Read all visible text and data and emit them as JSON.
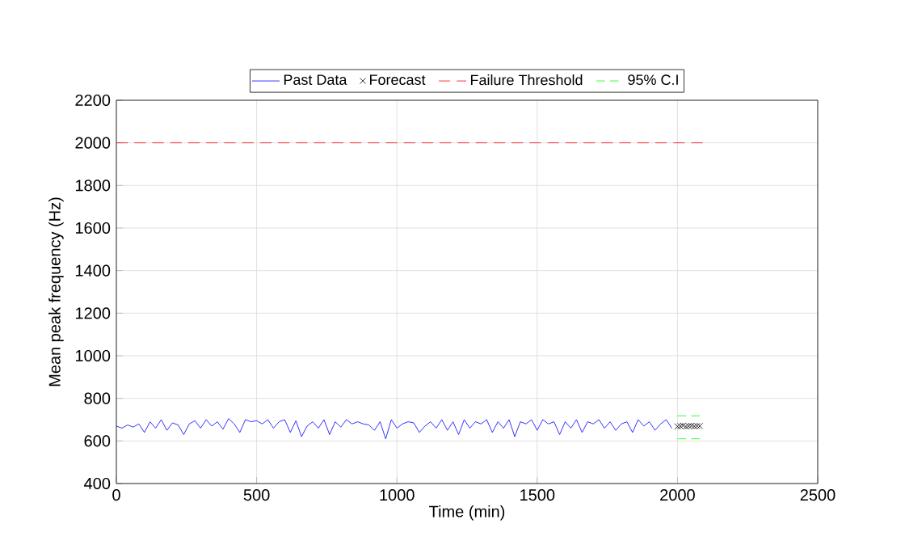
{
  "chart_data": {
    "type": "line",
    "xlabel": "Time (min)",
    "ylabel": "Mean peak frequency (Hz)",
    "xlim": [
      0,
      2500
    ],
    "ylim": [
      400,
      2200
    ],
    "xticks": [
      0,
      500,
      1000,
      1500,
      2000,
      2500
    ],
    "yticks": [
      400,
      600,
      800,
      1000,
      1200,
      1400,
      1600,
      1800,
      2000,
      2200
    ],
    "grid": true,
    "legend": "top",
    "series": [
      {
        "name": "Past Data",
        "color": "#0000ff",
        "marker": "none",
        "line_style": "solid",
        "x": [
          0,
          20,
          40,
          60,
          80,
          100,
          120,
          140,
          160,
          180,
          200,
          220,
          240,
          260,
          280,
          300,
          320,
          340,
          360,
          380,
          400,
          420,
          440,
          460,
          480,
          500,
          520,
          540,
          560,
          580,
          600,
          620,
          640,
          660,
          680,
          700,
          720,
          740,
          760,
          780,
          800,
          820,
          840,
          860,
          880,
          900,
          920,
          940,
          960,
          980,
          1000,
          1020,
          1040,
          1060,
          1080,
          1100,
          1120,
          1140,
          1160,
          1180,
          1200,
          1220,
          1240,
          1260,
          1280,
          1300,
          1320,
          1340,
          1360,
          1380,
          1400,
          1420,
          1440,
          1460,
          1480,
          1500,
          1520,
          1540,
          1560,
          1580,
          1600,
          1620,
          1640,
          1660,
          1680,
          1700,
          1720,
          1740,
          1760,
          1780,
          1800,
          1820,
          1840,
          1860,
          1880,
          1900,
          1920,
          1940,
          1960,
          1980
        ],
        "values": [
          670,
          660,
          675,
          665,
          680,
          640,
          690,
          660,
          700,
          650,
          685,
          675,
          630,
          680,
          695,
          660,
          700,
          670,
          690,
          655,
          705,
          680,
          640,
          700,
          690,
          695,
          680,
          700,
          660,
          690,
          700,
          640,
          695,
          620,
          670,
          690,
          660,
          700,
          630,
          690,
          665,
          700,
          680,
          690,
          680,
          675,
          650,
          690,
          610,
          700,
          660,
          680,
          690,
          685,
          640,
          670,
          690,
          660,
          700,
          650,
          690,
          630,
          700,
          660,
          690,
          680,
          700,
          640,
          690,
          660,
          700,
          620,
          690,
          680,
          700,
          650,
          700,
          680,
          690,
          630,
          690,
          660,
          700,
          640,
          690,
          680,
          700,
          660,
          690,
          650,
          680,
          690,
          640,
          700,
          670,
          690,
          650,
          680,
          700,
          660
        ]
      },
      {
        "name": "Forecast",
        "color": "#000000",
        "type": "scatter",
        "marker": "cross",
        "x": [
          2000,
          2010,
          2020,
          2030,
          2040,
          2050,
          2060,
          2070,
          2080
        ],
        "values": [
          668,
          670,
          672,
          668,
          670,
          671,
          669,
          670,
          670
        ]
      },
      {
        "name": "Failure Threshold",
        "color": "#ff0000",
        "marker": "none",
        "line_style": "dashed",
        "x": [
          0,
          2090
        ],
        "values": [
          2000,
          2000
        ]
      },
      {
        "name": "95% C.I",
        "color": "#00ff00",
        "marker": "none",
        "line_style": "dashed",
        "x": [
          2000,
          2080
        ],
        "values": [
          718,
          718
        ]
      },
      {
        "color": "#00ff00",
        "marker": "none",
        "line_style": "dashed",
        "x": [
          2000,
          2080
        ],
        "values": [
          610,
          610
        ]
      }
    ]
  }
}
